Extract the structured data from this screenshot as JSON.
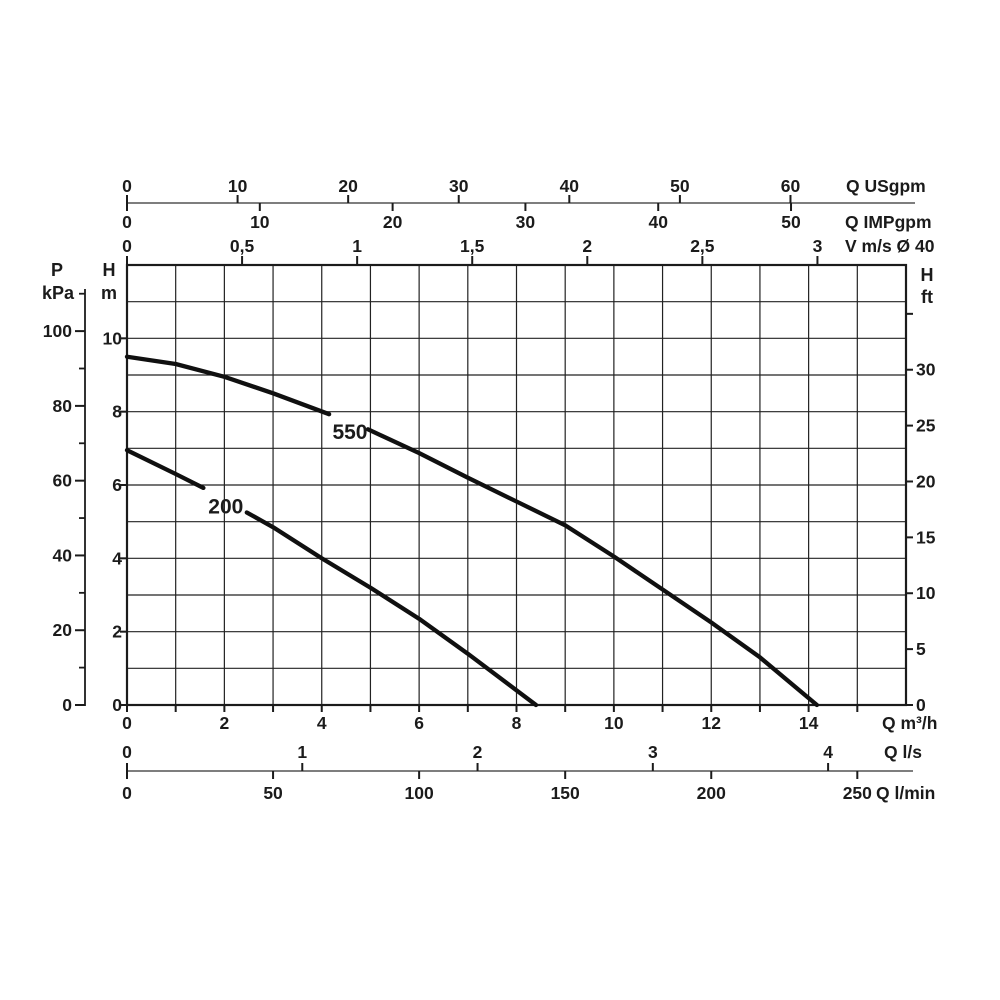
{
  "colors": {
    "background": "#ffffff",
    "ink": "#1b1b1b",
    "grid": "#222222",
    "secondary_axis_line": "#7e7e7e",
    "curve": "#101010"
  },
  "chart_data": {
    "type": "line",
    "description": "Pump H-Q performance curves for models 550 and 200",
    "x_unit_primary": "Q m³/h",
    "y_unit_primary": "H m",
    "x_range_m3h": [
      0,
      16
    ],
    "y_range_m": [
      0,
      12
    ],
    "grid_step_m3h": 1,
    "grid_step_m": 1,
    "legend_position": "none",
    "top_axes": [
      {
        "id": "usgpm",
        "unit_label": "Q USgpm",
        "m3h_per_unit": 0.22712,
        "tick_values": [
          0,
          10,
          20,
          30,
          40,
          50,
          60
        ],
        "tick_labels": [
          "0",
          "10",
          "20",
          "30",
          "40",
          "50",
          "60"
        ]
      },
      {
        "id": "impgpm",
        "unit_label": "Q IMPgpm",
        "m3h_per_unit": 0.27277,
        "tick_values": [
          0,
          10,
          20,
          30,
          40,
          50
        ],
        "tick_labels": [
          "0",
          "10",
          "20",
          "30",
          "40",
          "50"
        ]
      },
      {
        "id": "vms",
        "unit_label": "V m/s Ø 40",
        "m3h_per_unit": 4.727,
        "tick_values": [
          0,
          0.5,
          1,
          1.5,
          2,
          2.5,
          3
        ],
        "tick_labels": [
          "0",
          "0,5",
          "1",
          "1,5",
          "2",
          "2,5",
          "3"
        ]
      }
    ],
    "bottom_axes": [
      {
        "id": "m3h",
        "unit_label": "Q m³/h",
        "m3h_per_unit": 1,
        "tick_values": [
          0,
          2,
          4,
          6,
          8,
          10,
          12,
          14
        ],
        "tick_labels": [
          "0",
          "2",
          "4",
          "6",
          "8",
          "10",
          "12",
          "14"
        ],
        "minor_tick_step": 1
      },
      {
        "id": "ls",
        "unit_label": "Q l/s",
        "m3h_per_unit": 3.6,
        "tick_values": [
          0,
          1,
          2,
          3,
          4
        ],
        "tick_labels": [
          "0",
          "1",
          "2",
          "3",
          "4"
        ]
      },
      {
        "id": "lmin",
        "unit_label": "Q l/min",
        "m3h_per_unit": 0.06,
        "tick_values": [
          0,
          50,
          100,
          150,
          200,
          250
        ],
        "tick_labels": [
          "0",
          "50",
          "100",
          "150",
          "200",
          "250"
        ]
      }
    ],
    "left_axes": [
      {
        "id": "kpa",
        "header_top": "P",
        "header_bottom": "kPa",
        "m_per_unit": 0.10197,
        "tick_values": [
          0,
          20,
          40,
          60,
          80,
          100
        ],
        "tick_labels": [
          "0",
          "20",
          "40",
          "60",
          "80",
          "100"
        ],
        "minor_tick_values": [
          10,
          30,
          50,
          70,
          90,
          110
        ]
      },
      {
        "id": "hm",
        "header_top": "H",
        "header_bottom": "m",
        "m_per_unit": 1,
        "tick_values": [
          0,
          2,
          4,
          6,
          8,
          10
        ],
        "tick_labels": [
          "0",
          "2",
          "4",
          "6",
          "8",
          "10"
        ]
      }
    ],
    "right_axis": {
      "id": "hft",
      "header_top": "H",
      "header_bottom": "ft",
      "m_per_unit": 0.3048,
      "tick_values": [
        0,
        5,
        10,
        15,
        20,
        25,
        30
      ],
      "tick_labels": [
        "0",
        "5",
        "10",
        "15",
        "20",
        "25",
        "30"
      ],
      "minor_tick_values": [
        35
      ]
    },
    "series": [
      {
        "name": "550",
        "label": {
          "text": "550",
          "q_m3h": 4.58,
          "h_m": 7.45
        },
        "points_q_h": [
          [
            0,
            9.5
          ],
          [
            1,
            9.3
          ],
          [
            2,
            8.95
          ],
          [
            3,
            8.5
          ],
          [
            4.15,
            7.93
          ],
          null,
          [
            4.95,
            7.52
          ],
          [
            6,
            6.87
          ],
          [
            7,
            6.2
          ],
          [
            8,
            5.55
          ],
          [
            9,
            4.9
          ],
          [
            10,
            4.05
          ],
          [
            11,
            3.15
          ],
          [
            12,
            2.25
          ],
          [
            13,
            1.3
          ],
          [
            14.17,
            0
          ]
        ]
      },
      {
        "name": "200",
        "label": {
          "text": "200",
          "q_m3h": 2.03,
          "h_m": 5.42
        },
        "points_q_h": [
          [
            0,
            6.95
          ],
          [
            1,
            6.3
          ],
          [
            1.57,
            5.92
          ],
          null,
          [
            2.46,
            5.25
          ],
          [
            3,
            4.85
          ],
          [
            4,
            4.0
          ],
          [
            5,
            3.2
          ],
          [
            6,
            2.35
          ],
          [
            7,
            1.4
          ],
          [
            8.4,
            0
          ]
        ]
      }
    ]
  }
}
